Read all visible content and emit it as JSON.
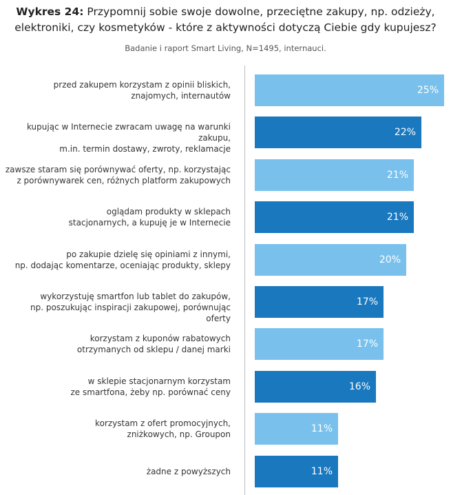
{
  "chart_data": {
    "type": "bar",
    "orientation": "horizontal",
    "title_bold": "Wykres 24:",
    "title_line1": "Przypomnij sobie swoje dowolne, przeciętne zakupy, np. odzieży,",
    "title_line2": "elektroniki, czy kosmetyków - które z aktywności dotyczą Ciebie gdy kupujesz?",
    "subtitle": "Badanie i raport Smart Living, N=1495, internauci.",
    "xlim": [
      0,
      25
    ],
    "colors": {
      "light": "#79c1ec",
      "dark": "#1a78bf"
    },
    "categories": [
      [
        "przed zakupem korzystam z opinii bliskich,",
        "znajomych, internautów"
      ],
      [
        "kupując w Internecie zwracam uwagę na warunki zakupu,",
        "m.in. termin dostawy, zwroty, reklamacje"
      ],
      [
        "zawsze staram się porównywać oferty, np. korzystając",
        "z porównywarek cen, różnych platform zakupowych"
      ],
      [
        "oglądam produkty w sklepach",
        "stacjonarnych, a kupuję je w Internecie"
      ],
      [
        "po zakupie dzielę się opiniami z innymi,",
        "np. dodając komentarze, oceniając produkty, sklepy"
      ],
      [
        "wykorzystuję smartfon lub tablet do zakupów,",
        "np. poszukując inspiracji zakupowej, porównując oferty"
      ],
      [
        "korzystam z kuponów rabatowych",
        "otrzymanych od sklepu / danej marki"
      ],
      [
        "w sklepie stacjonarnym korzystam",
        "ze smartfona, żeby np. porównać ceny"
      ],
      [
        "korzystam z ofert promocyjnych,",
        "zniżkowych, np. Groupon"
      ],
      [
        "żadne z powyższych"
      ]
    ],
    "values": [
      25,
      22,
      21,
      21,
      20,
      17,
      17,
      16,
      11,
      11
    ],
    "value_labels": [
      "25%",
      "22%",
      "21%",
      "21%",
      "20%",
      "17%",
      "17%",
      "16%",
      "11%",
      "11%"
    ],
    "bar_colors": [
      "light",
      "dark",
      "light",
      "dark",
      "light",
      "dark",
      "light",
      "dark",
      "light",
      "dark"
    ]
  }
}
